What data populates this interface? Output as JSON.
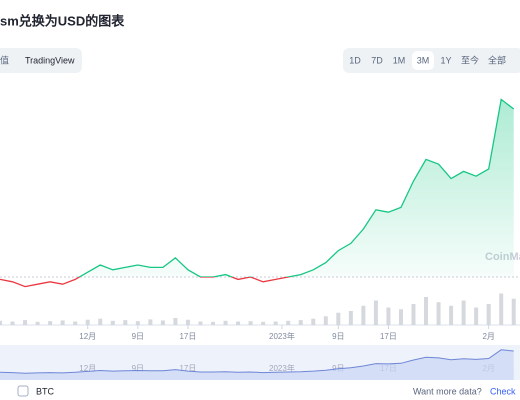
{
  "chart_data": {
    "type": "line",
    "title": "sm兑换为USD的图表",
    "tabs": [
      "值",
      "TradingView"
    ],
    "ranges": [
      "1D",
      "7D",
      "1M",
      "3M",
      "1Y",
      "至今",
      "全部"
    ],
    "active_range": "3M",
    "watermark": "CoinMa",
    "x": [
      0,
      2,
      4,
      6,
      8,
      10,
      12,
      14,
      16,
      18,
      20,
      22,
      24,
      26,
      28,
      30,
      32,
      34,
      36,
      38,
      40,
      42,
      44,
      46,
      48,
      50,
      52,
      54,
      56,
      58,
      60,
      62,
      64,
      66,
      68,
      70,
      72,
      74,
      76,
      78,
      80,
      82
    ],
    "series": [
      {
        "name": "price",
        "color": "#16c784",
        "down_color": "#ea3943",
        "values": [
          19,
          18,
          16,
          17,
          18,
          17,
          19,
          22,
          25,
          23,
          24,
          25,
          24,
          24,
          28,
          23,
          20,
          20,
          21,
          19,
          20,
          18,
          19,
          20,
          21,
          23,
          26,
          31,
          34,
          40,
          48,
          47,
          49,
          60,
          69,
          67,
          61,
          64,
          62,
          65,
          94,
          90
        ]
      },
      {
        "name": "volume",
        "color": "#d5d8dd",
        "values": [
          12,
          10,
          14,
          9,
          11,
          13,
          10,
          15,
          18,
          12,
          14,
          11,
          16,
          13,
          20,
          15,
          10,
          9,
          12,
          10,
          11,
          9,
          10,
          12,
          14,
          18,
          25,
          35,
          40,
          55,
          70,
          50,
          45,
          60,
          80,
          65,
          55,
          70,
          50,
          60,
          90,
          75
        ]
      }
    ],
    "baseline": 20,
    "xlim": [
      0,
      83
    ],
    "ylim": [
      0,
      100
    ],
    "volume_lim": [
      0,
      100
    ],
    "xticks": [
      {
        "value": 14,
        "label": "12月"
      },
      {
        "value": 22,
        "label": "9日"
      },
      {
        "value": 30,
        "label": "17日"
      },
      {
        "value": 45,
        "label": "2023年"
      },
      {
        "value": 54,
        "label": "9日"
      },
      {
        "value": 62,
        "label": "17日"
      },
      {
        "value": 78,
        "label": "2月"
      }
    ],
    "compare": "BTC",
    "more_data": "Want more data?",
    "more_link": "Check"
  }
}
